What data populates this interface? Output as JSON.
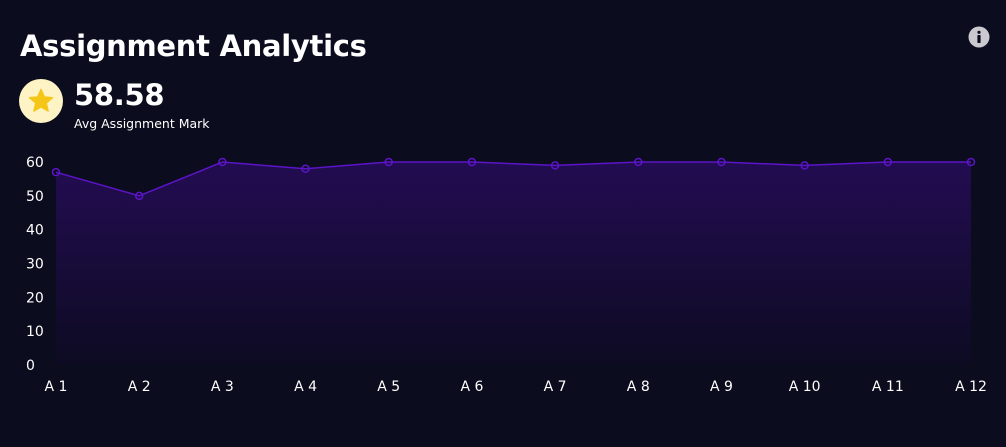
{
  "header": {
    "title": "Assignment Analytics",
    "info_icon": "info-circle-icon"
  },
  "kpi": {
    "icon": "star-icon",
    "value": "58.58",
    "label": "Avg Assignment Mark",
    "badge_color": "#fdf3c4",
    "star_color": "#f5c518"
  },
  "colors": {
    "background": "#0b0c1d",
    "line": "#5b14c8",
    "fill_top": "#230c52",
    "fill_bottom": "#0d0b22"
  },
  "chart_data": {
    "type": "area",
    "categories": [
      "A 1",
      "A 2",
      "A 3",
      "A 4",
      "A 5",
      "A 6",
      "A 7",
      "A 8",
      "A 9",
      "A 10",
      "A 11",
      "A 12"
    ],
    "series": [
      {
        "values": [
          57,
          50,
          60,
          58,
          60,
          60,
          59,
          60,
          60,
          59,
          60,
          60
        ]
      }
    ],
    "yticks": [
      0,
      10,
      20,
      30,
      40,
      50,
      60
    ],
    "ylim": [
      0,
      60
    ],
    "grid": false,
    "legend": "none"
  }
}
